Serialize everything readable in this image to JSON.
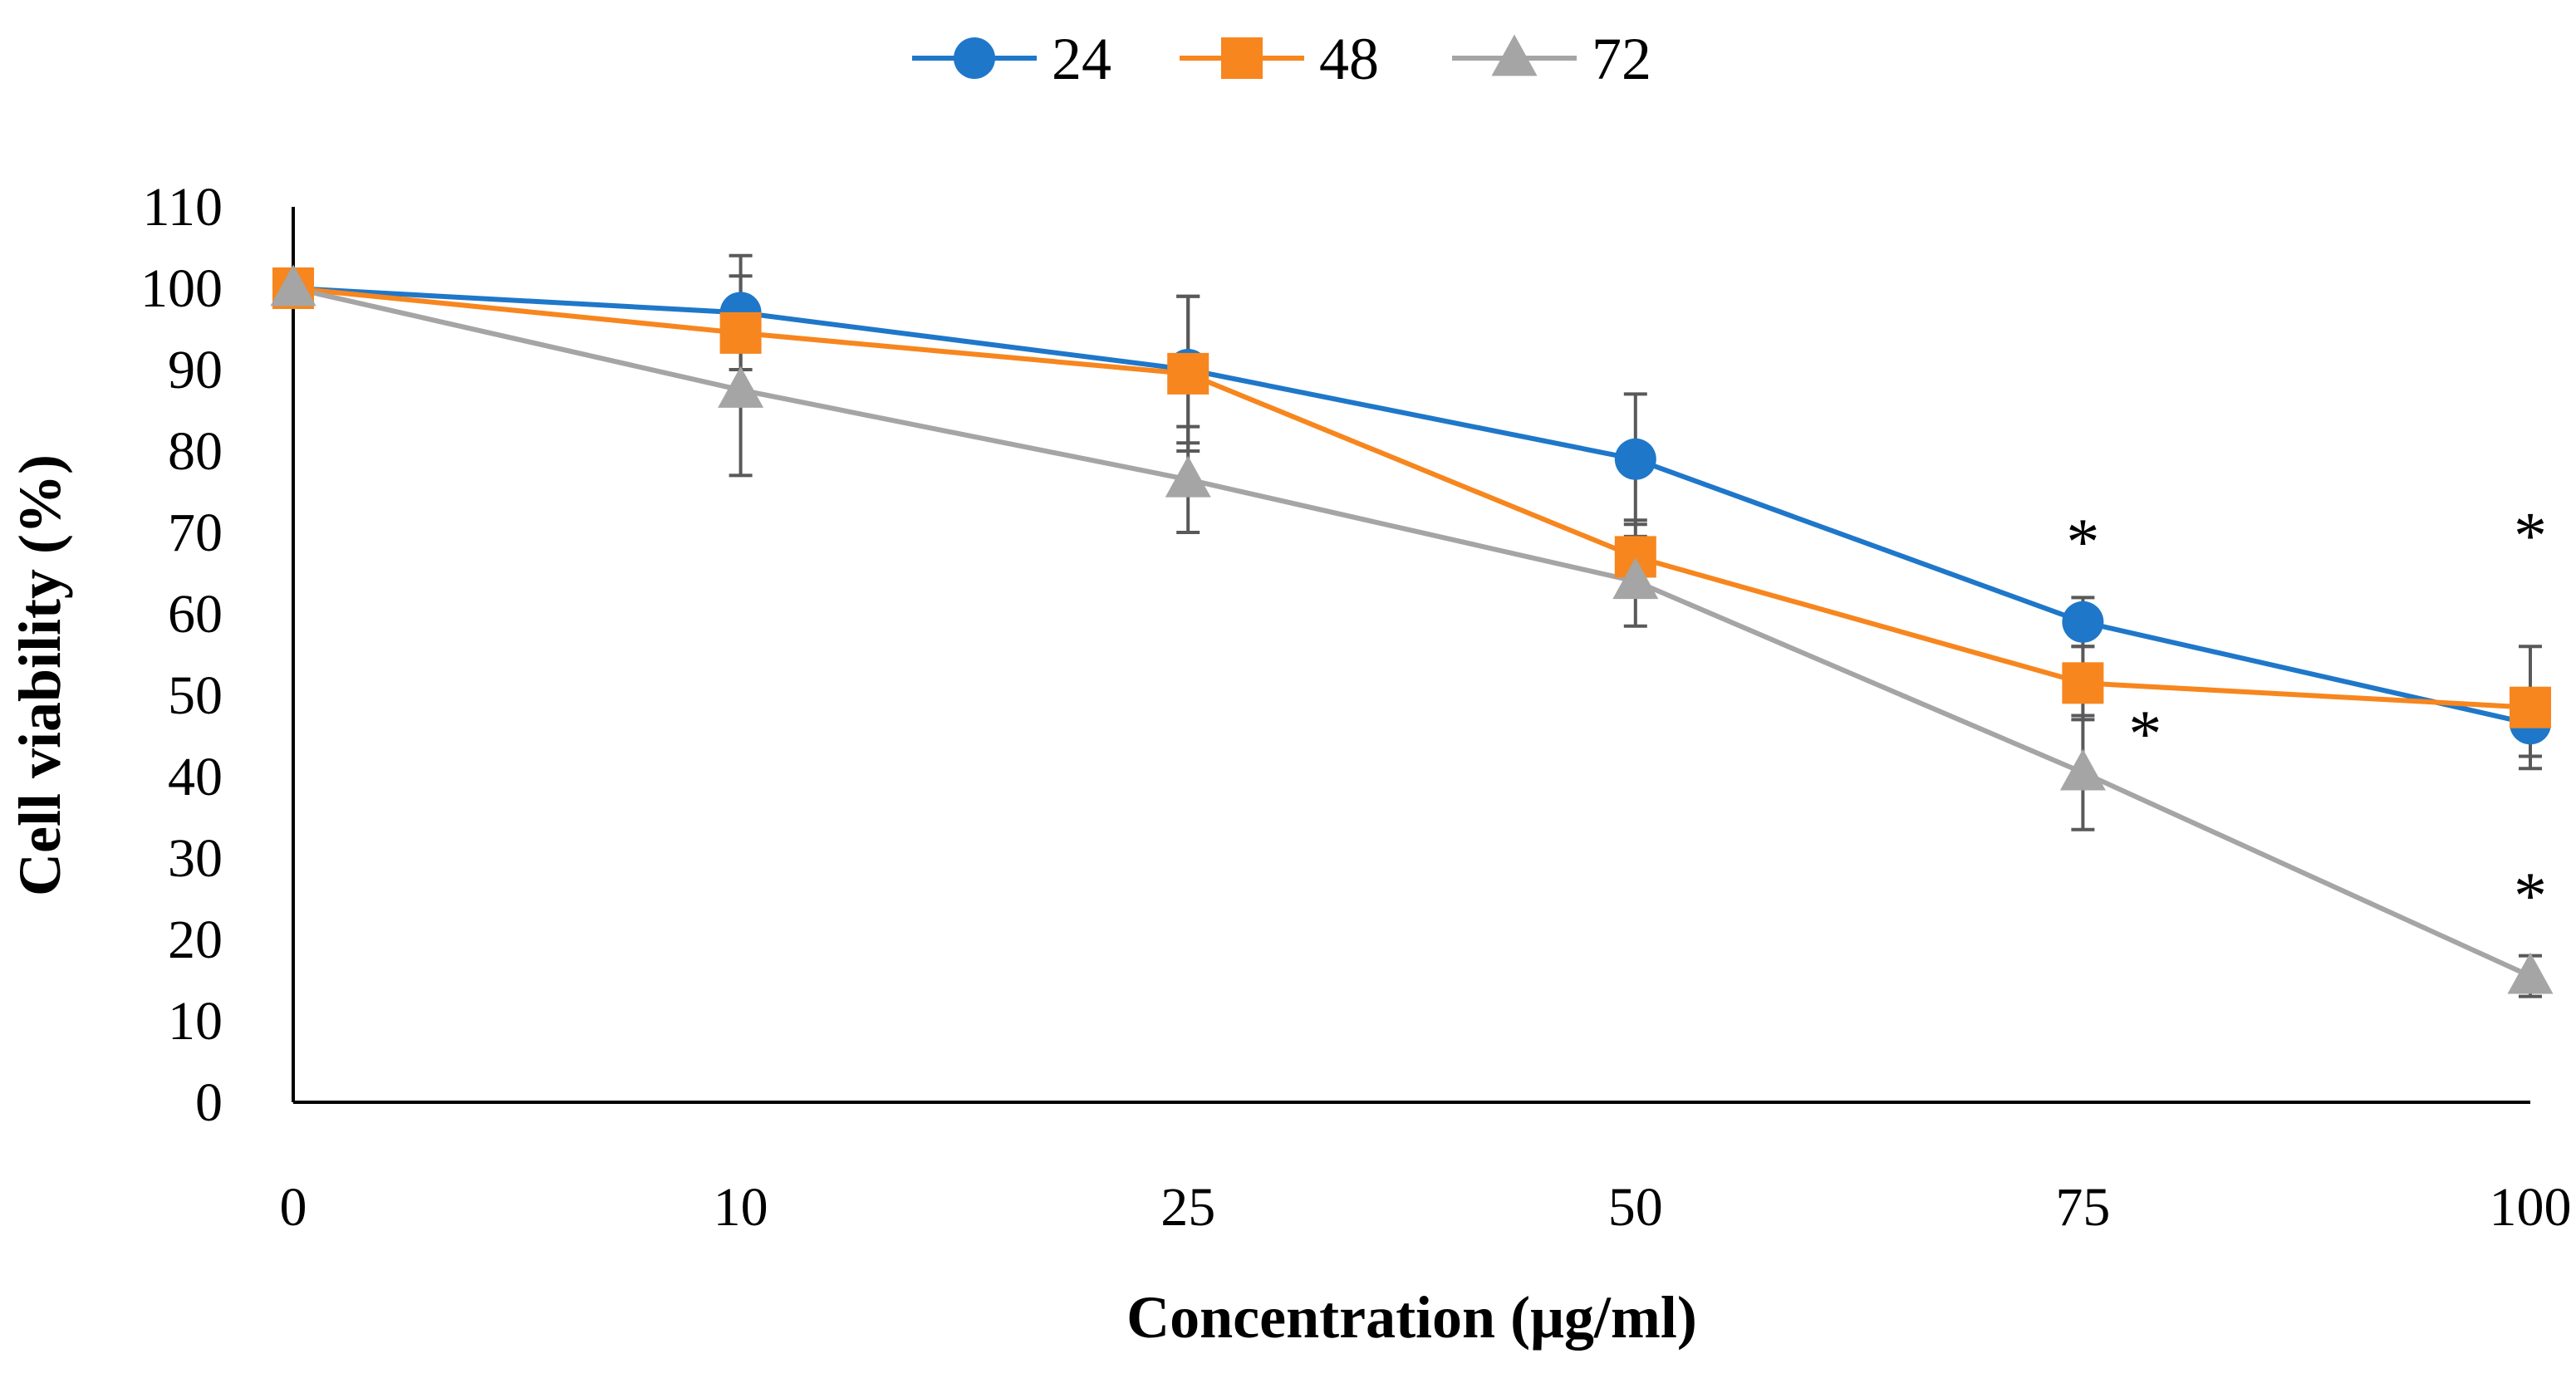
{
  "chart_data": {
    "type": "line",
    "title": "",
    "xlabel": "Concentration (μg/ml)",
    "ylabel": "Cell viability (%)",
    "categories": [
      "0",
      "10",
      "25",
      "50",
      "75",
      "100"
    ],
    "ylim": [
      0,
      110
    ],
    "yticks": [
      "0",
      "10",
      "20",
      "30",
      "40",
      "50",
      "60",
      "70",
      "80",
      "90",
      "100",
      "110"
    ],
    "grid": false,
    "legend_position": "top-center",
    "series": [
      {
        "name": "24",
        "color": "#1f77c9",
        "marker": "circle",
        "values": [
          100,
          97,
          90,
          79,
          59,
          46.5
        ],
        "errors": [
          0,
          7,
          9,
          8,
          3,
          4
        ]
      },
      {
        "name": "48",
        "color": "#f7861e",
        "marker": "square",
        "values": [
          100,
          94.5,
          89.5,
          67,
          51.5,
          48.5
        ],
        "errors": [
          0,
          7,
          9.5,
          4.5,
          4.5,
          7.5
        ]
      },
      {
        "name": "72",
        "color": "#a5a5a5",
        "marker": "triangle",
        "values": [
          100,
          87.5,
          76.5,
          64,
          40.5,
          15.5
        ],
        "errors": [
          0,
          10.5,
          6.5,
          5.5,
          7,
          2.5
        ]
      }
    ],
    "annotations": [
      {
        "text": "*",
        "series": "24",
        "category": "75"
      },
      {
        "text": "*",
        "series": "24",
        "category": "100"
      },
      {
        "text": "*",
        "series": "72",
        "category": "75"
      },
      {
        "text": "*",
        "series": "72",
        "category": "100"
      }
    ]
  }
}
